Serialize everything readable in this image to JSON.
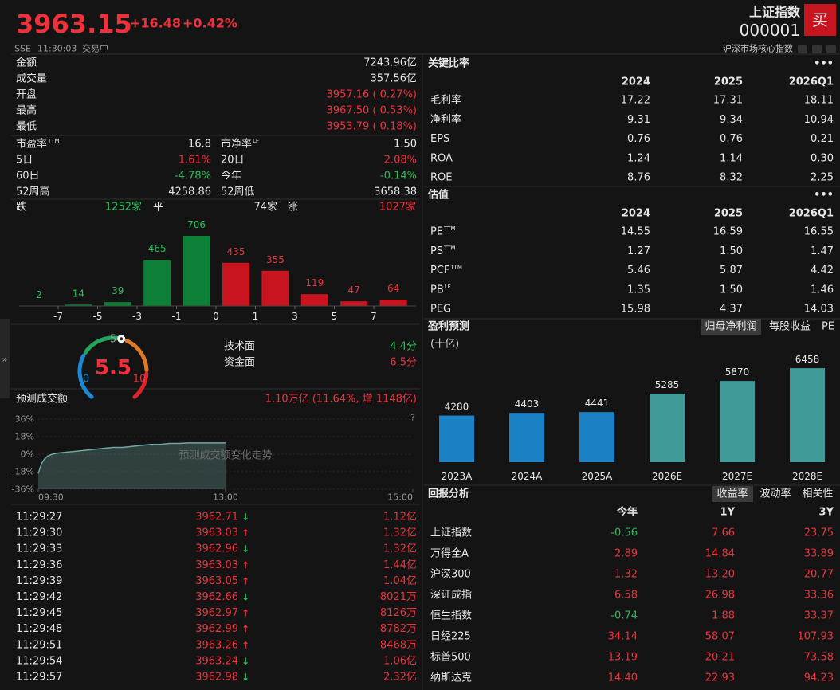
{
  "header": {
    "price": "3963.15",
    "change": "+16.48",
    "change_pct": "+0.42%",
    "market": "SSE",
    "time": "11:30:03",
    "status": "交易中",
    "name": "上证指数",
    "code": "000001",
    "buy": "买",
    "tag": "沪深市场核心指数"
  },
  "quote": [
    {
      "label": "金额",
      "value": "7243.96亿",
      "tone": "flat"
    },
    {
      "label": "成交量",
      "value": "357.56亿",
      "tone": "flat"
    },
    {
      "label": "开盘",
      "value": "3957.16 ( 0.27%)",
      "tone": "up"
    },
    {
      "label": "最高",
      "value": "3967.50 ( 0.53%)",
      "tone": "up"
    },
    {
      "label": "最低",
      "value": "3953.79 ( 0.18%)",
      "tone": "up"
    }
  ],
  "stats": [
    [
      {
        "label": "市盈率",
        "sup": "TTM",
        "value": "16.8"
      },
      {
        "label": "市净率",
        "sup": "LF",
        "value": "1.50"
      }
    ],
    [
      {
        "label": "5日",
        "value": "1.61%"
      },
      {
        "label": "20日",
        "value": "2.08%"
      }
    ],
    [
      {
        "label": "60日",
        "value": "-4.78%"
      },
      {
        "label": "今年",
        "value": "-0.14%"
      }
    ],
    [
      {
        "label": "52周高",
        "value": "4258.86"
      },
      {
        "label": "52周低",
        "value": "3658.38"
      }
    ]
  ],
  "breadth": {
    "down_label": "跌",
    "down": "1252家",
    "flat_label": "平",
    "flat": "74家",
    "up_label": "涨",
    "up": "1027家"
  },
  "distribution": {
    "type": "bar",
    "values": [
      2,
      14,
      39,
      465,
      706,
      435,
      355,
      119,
      47,
      64
    ],
    "xticks": [
      -7,
      -5,
      -3,
      -1,
      0,
      1,
      3,
      5,
      7
    ],
    "up_color": "#c8141f",
    "down_color": "#0d7f36"
  },
  "gauge": {
    "value": 5.5,
    "min": 0,
    "mid": 5,
    "max": 10,
    "items": [
      {
        "label": "技术面",
        "value": "4.4分",
        "tone": "down"
      },
      {
        "label": "资金面",
        "value": "6.5分",
        "tone": "up"
      }
    ]
  },
  "forecast_volume": {
    "title": "预测成交额",
    "summary": "1.10万亿 (11.64%, 增 1148亿)",
    "help": "?",
    "watermark": "预测成交额变化走势",
    "chart_data": {
      "type": "area",
      "x": [
        0,
        2,
        4,
        6,
        9,
        12,
        18,
        24,
        30,
        36,
        42,
        48,
        54,
        60,
        66,
        72,
        78,
        84,
        90,
        96,
        102,
        108,
        114,
        120
      ],
      "values": [
        -20,
        -10,
        -5,
        -2,
        0,
        1,
        2,
        3,
        4,
        5,
        6,
        7,
        7,
        8,
        9,
        10,
        10,
        11,
        11,
        11.6,
        11.6,
        11.6,
        11.6,
        11.6
      ],
      "xlim": [
        0,
        240
      ],
      "xticks": [
        {
          "value": 0,
          "label": "09:30"
        },
        {
          "value": 120,
          "label": "13:00"
        },
        {
          "value": 240,
          "label": "15:00"
        }
      ],
      "ylim": [
        -36,
        36
      ],
      "yticks": [
        {
          "value": 36,
          "label": "36%"
        },
        {
          "value": 18,
          "label": "18%"
        },
        {
          "value": 0,
          "label": "0%"
        },
        {
          "value": -18,
          "label": "-18%"
        },
        {
          "value": -36,
          "label": "-36%"
        }
      ],
      "color": "#4f7571"
    }
  },
  "ticks": {
    "rows": [
      [
        "11:29:27",
        "3962.71",
        "↓",
        "1.12亿"
      ],
      [
        "11:29:30",
        "3963.03",
        "↑",
        "1.32亿"
      ],
      [
        "11:29:33",
        "3962.96",
        "↓",
        "1.32亿"
      ],
      [
        "11:29:36",
        "3963.03",
        "↑",
        "1.44亿"
      ],
      [
        "11:29:39",
        "3963.05",
        "↑",
        "1.04亿"
      ],
      [
        "11:29:42",
        "3962.66",
        "↓",
        "8021万"
      ],
      [
        "11:29:45",
        "3962.97",
        "↑",
        "8126万"
      ],
      [
        "11:29:48",
        "3962.99",
        "↑",
        "8782万"
      ],
      [
        "11:29:51",
        "3963.26",
        "↑",
        "8468万"
      ],
      [
        "11:29:54",
        "3963.24",
        "↓",
        "1.06亿"
      ],
      [
        "11:29:57",
        "3962.98",
        "↓",
        "2.32亿"
      ]
    ]
  },
  "ratios": {
    "title": "关键比率",
    "more": "•••",
    "columns": [
      "2024",
      "2025",
      "2026Q1"
    ],
    "rows": [
      {
        "label": "毛利率",
        "values": [
          "17.22",
          "17.31",
          "18.11"
        ]
      },
      {
        "label": "净利率",
        "values": [
          "9.31",
          "9.34",
          "10.94"
        ]
      },
      {
        "label": "EPS",
        "values": [
          "0.76",
          "0.76",
          "0.21"
        ]
      },
      {
        "label": "ROA",
        "values": [
          "1.24",
          "1.14",
          "0.30"
        ]
      },
      {
        "label": "ROE",
        "values": [
          "8.76",
          "8.32",
          "2.25"
        ]
      }
    ]
  },
  "valuation": {
    "title": "估值",
    "more": "•••",
    "columns": [
      "2024",
      "2025",
      "2026Q1"
    ],
    "rows": [
      {
        "label": "PE",
        "sup": "TTM",
        "values": [
          "14.55",
          "16.59",
          "16.55"
        ]
      },
      {
        "label": "PS",
        "sup": "TTM",
        "values": [
          "1.27",
          "1.50",
          "1.47"
        ]
      },
      {
        "label": "PCF",
        "sup": "TTM",
        "values": [
          "5.46",
          "5.87",
          "4.42"
        ]
      },
      {
        "label": "PB",
        "sup": "LF",
        "values": [
          "1.35",
          "1.50",
          "1.46"
        ]
      },
      {
        "label": "PEG",
        "values": [
          "15.98",
          "4.37",
          "14.03"
        ]
      }
    ]
  },
  "earnings": {
    "title": "盈利预测",
    "tabs": [
      "归母净利润",
      "每股收益",
      "PE"
    ],
    "active_tab": 0,
    "unit": "(十亿)",
    "chart_data": {
      "type": "bar",
      "categories": [
        "2023A",
        "2024A",
        "2025A",
        "2026E",
        "2027E",
        "2028E"
      ],
      "values": [
        4280,
        4403,
        4441,
        5285,
        5870,
        6458
      ],
      "colors": [
        "#1a82c4",
        "#1a82c4",
        "#1a82c4",
        "#3f9a98",
        "#3f9a98",
        "#3f9a98"
      ],
      "ylim": [
        2138,
        6900
      ]
    }
  },
  "returns": {
    "title": "回报分析",
    "tabs": [
      "收益率",
      "波动率",
      "相关性"
    ],
    "active_tab": 0,
    "columns": [
      "今年",
      "1Y",
      "3Y"
    ],
    "rows": [
      {
        "label": "上证指数",
        "values": [
          "-0.56",
          "7.66",
          "23.75"
        ]
      },
      {
        "label": "万得全A",
        "values": [
          "2.89",
          "14.84",
          "33.89"
        ]
      },
      {
        "label": "沪深300",
        "values": [
          "1.32",
          "13.20",
          "20.77"
        ]
      },
      {
        "label": "深证成指",
        "values": [
          "6.58",
          "26.98",
          "33.36"
        ]
      },
      {
        "label": "恒生指数",
        "values": [
          "-0.74",
          "1.88",
          "33.37"
        ]
      },
      {
        "label": "日经225",
        "values": [
          "34.14",
          "58.07",
          "107.93"
        ]
      },
      {
        "label": "标普500",
        "values": [
          "13.19",
          "20.21",
          "73.58"
        ]
      },
      {
        "label": "纳斯达克",
        "values": [
          "14.40",
          "22.93",
          "94.23"
        ]
      }
    ]
  }
}
